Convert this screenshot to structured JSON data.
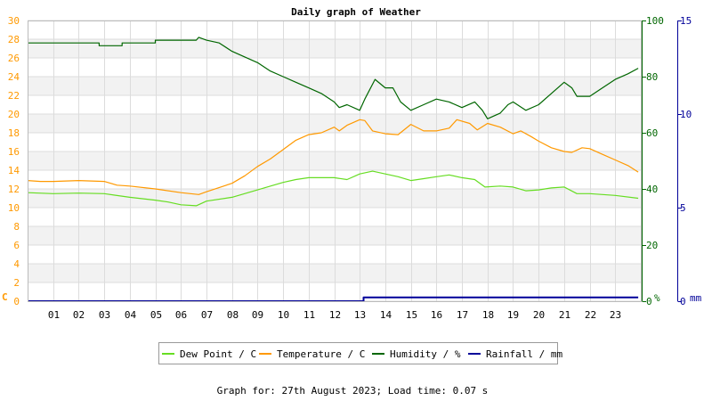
{
  "chart_data": {
    "type": "line",
    "title": "Daily graph of Weather",
    "x": {
      "unit": "hour",
      "range": [
        0,
        24
      ],
      "tick_labels": [
        "01",
        "02",
        "03",
        "04",
        "05",
        "06",
        "07",
        "08",
        "09",
        "10",
        "11",
        "12",
        "13",
        "14",
        "15",
        "16",
        "17",
        "18",
        "19",
        "20",
        "21",
        "22",
        "23"
      ]
    },
    "axes": {
      "temperature": {
        "unit_label": "C",
        "range": [
          0,
          30
        ],
        "ticks": [
          0,
          2,
          4,
          6,
          8,
          10,
          12,
          14,
          16,
          18,
          20,
          22,
          24,
          26,
          28,
          30
        ],
        "side": "left",
        "color": "#ff9900"
      },
      "humidity": {
        "unit_label": "%",
        "range": [
          0,
          100
        ],
        "ticks": [
          0,
          20,
          40,
          60,
          80,
          100
        ],
        "side": "right",
        "color": "#006600"
      },
      "rainfall": {
        "unit_label": "mm",
        "range": [
          0,
          15
        ],
        "ticks": [
          0,
          5,
          10,
          15
        ],
        "side": "right",
        "color": "#000099"
      }
    },
    "grid": true,
    "legend_position": "bottom",
    "series": [
      {
        "name": "Dew Point / C",
        "axis": "temperature",
        "color": "#66dd22",
        "points": [
          [
            0,
            11.6
          ],
          [
            1,
            11.5
          ],
          [
            2,
            11.55
          ],
          [
            3,
            11.5
          ],
          [
            4,
            11.1
          ],
          [
            5,
            10.8
          ],
          [
            5.5,
            10.6
          ],
          [
            6,
            10.3
          ],
          [
            6.6,
            10.2
          ],
          [
            7,
            10.7
          ],
          [
            8,
            11.1
          ],
          [
            9,
            11.9
          ],
          [
            10,
            12.7
          ],
          [
            10.5,
            13.0
          ],
          [
            11,
            13.2
          ],
          [
            12,
            13.2
          ],
          [
            12.5,
            13.0
          ],
          [
            13,
            13.6
          ],
          [
            13.5,
            13.9
          ],
          [
            14,
            13.6
          ],
          [
            14.5,
            13.3
          ],
          [
            15,
            12.9
          ],
          [
            15.5,
            13.1
          ],
          [
            16,
            13.3
          ],
          [
            16.5,
            13.5
          ],
          [
            17,
            13.2
          ],
          [
            17.5,
            13.0
          ],
          [
            17.9,
            12.2
          ],
          [
            18.5,
            12.3
          ],
          [
            19,
            12.2
          ],
          [
            19.5,
            11.8
          ],
          [
            20,
            11.9
          ],
          [
            20.5,
            12.1
          ],
          [
            21,
            12.2
          ],
          [
            21.5,
            11.5
          ],
          [
            22,
            11.5
          ],
          [
            22.5,
            11.4
          ],
          [
            23,
            11.3
          ],
          [
            23.9,
            11.0
          ]
        ]
      },
      {
        "name": "Temperature / C",
        "axis": "temperature",
        "color": "#ff9900",
        "points": [
          [
            0,
            12.9
          ],
          [
            0.5,
            12.8
          ],
          [
            1,
            12.8
          ],
          [
            2,
            12.9
          ],
          [
            3,
            12.8
          ],
          [
            3.5,
            12.4
          ],
          [
            4,
            12.3
          ],
          [
            5,
            12.0
          ],
          [
            6,
            11.6
          ],
          [
            6.7,
            11.4
          ],
          [
            7,
            11.7
          ],
          [
            8,
            12.6
          ],
          [
            8.5,
            13.4
          ],
          [
            9,
            14.4
          ],
          [
            9.5,
            15.2
          ],
          [
            10,
            16.2
          ],
          [
            10.5,
            17.2
          ],
          [
            11,
            17.8
          ],
          [
            11.5,
            18.0
          ],
          [
            12,
            18.6
          ],
          [
            12.2,
            18.2
          ],
          [
            12.5,
            18.8
          ],
          [
            13,
            19.4
          ],
          [
            13.2,
            19.3
          ],
          [
            13.5,
            18.2
          ],
          [
            14,
            17.9
          ],
          [
            14.5,
            17.8
          ],
          [
            15,
            18.9
          ],
          [
            15.5,
            18.2
          ],
          [
            16,
            18.2
          ],
          [
            16.5,
            18.5
          ],
          [
            16.8,
            19.4
          ],
          [
            17.3,
            19.0
          ],
          [
            17.6,
            18.3
          ],
          [
            18,
            19.0
          ],
          [
            18.5,
            18.6
          ],
          [
            19,
            17.9
          ],
          [
            19.3,
            18.2
          ],
          [
            19.7,
            17.6
          ],
          [
            20,
            17.1
          ],
          [
            20.5,
            16.4
          ],
          [
            21,
            16.0
          ],
          [
            21.3,
            15.9
          ],
          [
            21.7,
            16.4
          ],
          [
            22,
            16.3
          ],
          [
            22.5,
            15.7
          ],
          [
            23,
            15.1
          ],
          [
            23.5,
            14.5
          ],
          [
            23.9,
            13.8
          ]
        ]
      },
      {
        "name": "Humidity / %",
        "axis": "humidity",
        "color": "#006600",
        "points": [
          [
            0,
            92
          ],
          [
            2.8,
            92
          ],
          [
            2.8,
            91
          ],
          [
            3.7,
            91
          ],
          [
            3.7,
            92
          ],
          [
            5,
            92
          ],
          [
            5,
            93
          ],
          [
            6.6,
            93
          ],
          [
            6.7,
            94
          ],
          [
            7,
            93
          ],
          [
            7.5,
            92
          ],
          [
            8,
            89
          ],
          [
            8.5,
            87
          ],
          [
            9,
            85
          ],
          [
            9.5,
            82
          ],
          [
            10,
            80
          ],
          [
            10.5,
            78
          ],
          [
            11,
            76
          ],
          [
            11.5,
            74
          ],
          [
            12,
            71
          ],
          [
            12.2,
            69
          ],
          [
            12.5,
            70
          ],
          [
            13,
            68
          ],
          [
            13.2,
            72
          ],
          [
            13.6,
            79
          ],
          [
            14,
            76
          ],
          [
            14.3,
            76
          ],
          [
            14.6,
            71
          ],
          [
            15,
            68
          ],
          [
            15.5,
            70
          ],
          [
            16,
            72
          ],
          [
            16.5,
            71
          ],
          [
            17,
            69
          ],
          [
            17.5,
            71
          ],
          [
            17.8,
            68
          ],
          [
            18,
            65
          ],
          [
            18.5,
            67
          ],
          [
            18.8,
            70
          ],
          [
            19,
            71
          ],
          [
            19.5,
            68
          ],
          [
            20,
            70
          ],
          [
            20.5,
            74
          ],
          [
            21,
            78
          ],
          [
            21.3,
            76
          ],
          [
            21.5,
            73
          ],
          [
            22,
            73
          ],
          [
            22.5,
            76
          ],
          [
            23,
            79
          ],
          [
            23.5,
            81
          ],
          [
            23.9,
            83
          ]
        ]
      },
      {
        "name": "Rainfall / mm",
        "axis": "rainfall",
        "color": "#000099",
        "points": [
          [
            0,
            0
          ],
          [
            13.15,
            0
          ],
          [
            13.15,
            0.2
          ],
          [
            23.9,
            0.2
          ]
        ]
      }
    ]
  },
  "footer": {
    "text": "Graph for: 27th August 2023; Load time: 0.07 s"
  }
}
